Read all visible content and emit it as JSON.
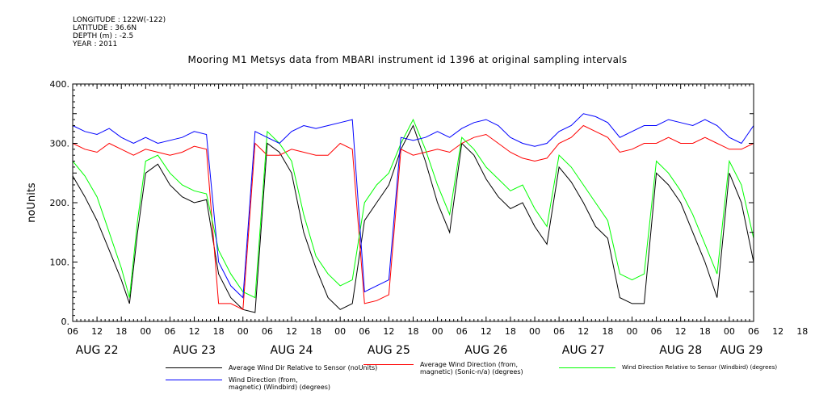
{
  "meta": {
    "longitude": "LONGITUDE : 122W(-122)",
    "latitude": "LATITUDE : 36.6N",
    "depth": "DEPTH (m) : -2.5",
    "year": "YEAR : 2011"
  },
  "chart_data": {
    "type": "line",
    "title": "Mooring M1 Metsys data from MBARI instrument id 1396 at original sampling intervals",
    "xlabel": "",
    "ylabel": "noUnits",
    "ylim": [
      0,
      400
    ],
    "yticks": [
      0,
      100,
      200,
      300,
      400
    ],
    "ytick_labels": [
      "0.",
      "100.",
      "200.",
      "300.",
      "400."
    ],
    "xlim_hours_from_aug22_06": [
      0,
      168
    ],
    "hour_tick_labels": [
      "06",
      "12",
      "18",
      "00",
      "06",
      "12",
      "18",
      "00",
      "06",
      "12",
      "18",
      "00",
      "06",
      "12",
      "18",
      "00",
      "06",
      "12",
      "18",
      "00",
      "06",
      "12",
      "18",
      "00",
      "06",
      "12",
      "18",
      "00",
      "06",
      "12",
      "18",
      "00",
      "06"
    ],
    "day_labels": [
      "AUG 22",
      "AUG 23",
      "AUG 24",
      "AUG 25",
      "AUG 26",
      "AUG 27",
      "AUG 28",
      "AUG 29"
    ],
    "grid": false,
    "legend_position": "bottom",
    "series": [
      {
        "name": "Average Wind Dir Relative to Sensor (noUnits)",
        "color": "#000000",
        "points": [
          [
            0,
            245
          ],
          [
            3,
            210
          ],
          [
            6,
            170
          ],
          [
            9,
            120
          ],
          [
            12,
            70
          ],
          [
            14,
            30
          ],
          [
            16,
            150
          ],
          [
            18,
            250
          ],
          [
            21,
            265
          ],
          [
            24,
            230
          ],
          [
            27,
            210
          ],
          [
            30,
            200
          ],
          [
            33,
            205
          ],
          [
            36,
            80
          ],
          [
            39,
            40
          ],
          [
            42,
            20
          ],
          [
            45,
            15
          ],
          [
            48,
            300
          ],
          [
            51,
            285
          ],
          [
            54,
            250
          ],
          [
            57,
            150
          ],
          [
            60,
            90
          ],
          [
            63,
            40
          ],
          [
            66,
            20
          ],
          [
            69,
            30
          ],
          [
            72,
            170
          ],
          [
            75,
            200
          ],
          [
            78,
            230
          ],
          [
            81,
            290
          ],
          [
            84,
            330
          ],
          [
            87,
            270
          ],
          [
            90,
            200
          ],
          [
            93,
            150
          ],
          [
            96,
            300
          ],
          [
            99,
            280
          ],
          [
            102,
            240
          ],
          [
            105,
            210
          ],
          [
            108,
            190
          ],
          [
            111,
            200
          ],
          [
            114,
            160
          ],
          [
            117,
            130
          ],
          [
            120,
            260
          ],
          [
            123,
            235
          ],
          [
            126,
            200
          ],
          [
            129,
            160
          ],
          [
            132,
            140
          ],
          [
            135,
            40
          ],
          [
            138,
            30
          ],
          [
            141,
            30
          ],
          [
            144,
            250
          ],
          [
            147,
            230
          ],
          [
            150,
            200
          ],
          [
            153,
            150
          ],
          [
            156,
            100
          ],
          [
            159,
            40
          ],
          [
            162,
            250
          ],
          [
            165,
            200
          ],
          [
            168,
            100
          ]
        ]
      },
      {
        "name": "Average Wind Direction (from,\nmagnetic) (Sonic-n/a) (degrees)",
        "color": "#ff0000",
        "points": [
          [
            0,
            300
          ],
          [
            3,
            290
          ],
          [
            6,
            285
          ],
          [
            9,
            300
          ],
          [
            12,
            290
          ],
          [
            15,
            280
          ],
          [
            18,
            290
          ],
          [
            21,
            285
          ],
          [
            24,
            280
          ],
          [
            27,
            285
          ],
          [
            30,
            295
          ],
          [
            33,
            290
          ],
          [
            36,
            30
          ],
          [
            39,
            30
          ],
          [
            42,
            20
          ],
          [
            45,
            300
          ],
          [
            48,
            280
          ],
          [
            51,
            280
          ],
          [
            54,
            290
          ],
          [
            57,
            285
          ],
          [
            60,
            280
          ],
          [
            63,
            280
          ],
          [
            66,
            300
          ],
          [
            69,
            290
          ],
          [
            72,
            30
          ],
          [
            75,
            35
          ],
          [
            78,
            45
          ],
          [
            81,
            290
          ],
          [
            84,
            280
          ],
          [
            87,
            285
          ],
          [
            90,
            290
          ],
          [
            93,
            285
          ],
          [
            96,
            300
          ],
          [
            99,
            310
          ],
          [
            102,
            315
          ],
          [
            105,
            300
          ],
          [
            108,
            285
          ],
          [
            111,
            275
          ],
          [
            114,
            270
          ],
          [
            117,
            275
          ],
          [
            120,
            300
          ],
          [
            123,
            310
          ],
          [
            126,
            330
          ],
          [
            129,
            320
          ],
          [
            132,
            310
          ],
          [
            135,
            285
          ],
          [
            138,
            290
          ],
          [
            141,
            300
          ],
          [
            144,
            300
          ],
          [
            147,
            310
          ],
          [
            150,
            300
          ],
          [
            153,
            300
          ],
          [
            156,
            310
          ],
          [
            159,
            300
          ],
          [
            162,
            290
          ],
          [
            165,
            290
          ],
          [
            168,
            300
          ]
        ]
      },
      {
        "name": "Wind Direction Relative to Sensor (Windbird) (degrees)",
        "color": "#00ff00",
        "points": [
          [
            0,
            270
          ],
          [
            3,
            245
          ],
          [
            6,
            210
          ],
          [
            9,
            150
          ],
          [
            12,
            90
          ],
          [
            14,
            40
          ],
          [
            16,
            170
          ],
          [
            18,
            270
          ],
          [
            21,
            280
          ],
          [
            24,
            250
          ],
          [
            27,
            230
          ],
          [
            30,
            220
          ],
          [
            33,
            215
          ],
          [
            36,
            120
          ],
          [
            39,
            80
          ],
          [
            42,
            50
          ],
          [
            45,
            40
          ],
          [
            48,
            320
          ],
          [
            51,
            300
          ],
          [
            54,
            270
          ],
          [
            57,
            180
          ],
          [
            60,
            110
          ],
          [
            63,
            80
          ],
          [
            66,
            60
          ],
          [
            69,
            70
          ],
          [
            72,
            200
          ],
          [
            75,
            230
          ],
          [
            78,
            250
          ],
          [
            81,
            300
          ],
          [
            84,
            340
          ],
          [
            87,
            290
          ],
          [
            90,
            230
          ],
          [
            93,
            180
          ],
          [
            96,
            310
          ],
          [
            99,
            290
          ],
          [
            102,
            260
          ],
          [
            105,
            240
          ],
          [
            108,
            220
          ],
          [
            111,
            230
          ],
          [
            114,
            190
          ],
          [
            117,
            160
          ],
          [
            120,
            280
          ],
          [
            123,
            260
          ],
          [
            126,
            230
          ],
          [
            129,
            200
          ],
          [
            132,
            170
          ],
          [
            135,
            80
          ],
          [
            138,
            70
          ],
          [
            141,
            80
          ],
          [
            144,
            270
          ],
          [
            147,
            250
          ],
          [
            150,
            220
          ],
          [
            153,
            180
          ],
          [
            156,
            130
          ],
          [
            159,
            80
          ],
          [
            162,
            270
          ],
          [
            165,
            230
          ],
          [
            168,
            140
          ]
        ]
      },
      {
        "name": "Wind Direction (from,\nmagnetic) (Windbird) (degrees)",
        "color": "#0000ff",
        "points": [
          [
            0,
            330
          ],
          [
            3,
            320
          ],
          [
            6,
            315
          ],
          [
            9,
            325
          ],
          [
            12,
            310
          ],
          [
            15,
            300
          ],
          [
            18,
            310
          ],
          [
            21,
            300
          ],
          [
            24,
            305
          ],
          [
            27,
            310
          ],
          [
            30,
            320
          ],
          [
            33,
            315
          ],
          [
            36,
            100
          ],
          [
            39,
            60
          ],
          [
            42,
            40
          ],
          [
            45,
            320
          ],
          [
            48,
            310
          ],
          [
            51,
            300
          ],
          [
            54,
            320
          ],
          [
            57,
            330
          ],
          [
            60,
            325
          ],
          [
            63,
            330
          ],
          [
            66,
            335
          ],
          [
            69,
            340
          ],
          [
            72,
            50
          ],
          [
            75,
            60
          ],
          [
            78,
            70
          ],
          [
            81,
            310
          ],
          [
            84,
            305
          ],
          [
            87,
            310
          ],
          [
            90,
            320
          ],
          [
            93,
            310
          ],
          [
            96,
            325
          ],
          [
            99,
            335
          ],
          [
            102,
            340
          ],
          [
            105,
            330
          ],
          [
            108,
            310
          ],
          [
            111,
            300
          ],
          [
            114,
            295
          ],
          [
            117,
            300
          ],
          [
            120,
            320
          ],
          [
            123,
            330
          ],
          [
            126,
            350
          ],
          [
            129,
            345
          ],
          [
            132,
            335
          ],
          [
            135,
            310
          ],
          [
            138,
            320
          ],
          [
            141,
            330
          ],
          [
            144,
            330
          ],
          [
            147,
            340
          ],
          [
            150,
            335
          ],
          [
            153,
            330
          ],
          [
            156,
            340
          ],
          [
            159,
            330
          ],
          [
            162,
            310
          ],
          [
            165,
            300
          ],
          [
            168,
            330
          ]
        ]
      }
    ]
  }
}
